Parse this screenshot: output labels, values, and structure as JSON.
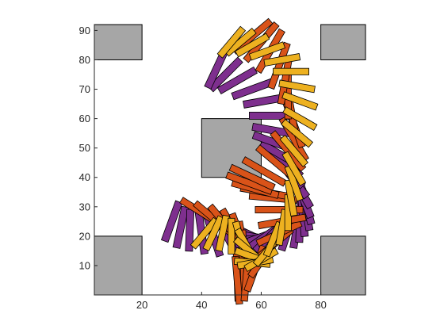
{
  "chart_data": {
    "type": "scatter",
    "title": "",
    "xlabel": "",
    "ylabel": "",
    "xlim": [
      4,
      95
    ],
    "ylim": [
      0,
      92
    ],
    "xticks": [
      20,
      40,
      60,
      80
    ],
    "yticks": [
      10,
      20,
      30,
      40,
      50,
      60,
      70,
      80,
      90
    ],
    "xtick_labels": [
      "20",
      "40",
      "60",
      "80"
    ],
    "ytick_labels": [
      "10",
      "20",
      "30",
      "40",
      "50",
      "60",
      "70",
      "80",
      "90"
    ],
    "grid": false,
    "legend": "none",
    "colors": {
      "purple": "#7e2f8e",
      "orange": "#d95319",
      "yellow": "#edb120",
      "obstacle": "#a6a6a6",
      "edge": "#000000"
    },
    "obstacles": [
      {
        "x": [
          4,
          20
        ],
        "y": [
          80,
          92
        ]
      },
      {
        "x": [
          80,
          95
        ],
        "y": [
          80,
          92
        ]
      },
      {
        "x": [
          40,
          60
        ],
        "y": [
          40,
          60
        ]
      },
      {
        "x": [
          4,
          20
        ],
        "y": [
          0,
          20
        ]
      },
      {
        "x": [
          80,
          95
        ],
        "y": [
          0,
          20
        ]
      }
    ],
    "series": [
      {
        "color": "purple",
        "length": 14,
        "width": 2.4,
        "poses": [
          [
            30,
            25,
            250
          ],
          [
            33,
            23,
            258
          ],
          [
            36,
            22,
            268
          ],
          [
            40,
            21,
            278
          ],
          [
            44,
            20,
            288
          ],
          [
            48,
            21,
            298
          ],
          [
            51,
            22,
            305
          ],
          [
            53,
            22,
            318
          ],
          [
            55,
            21,
            335
          ],
          [
            56,
            20,
            350
          ],
          [
            57,
            19,
            5
          ],
          [
            58,
            19,
            20
          ],
          [
            60,
            19,
            35
          ],
          [
            63,
            20,
            45
          ],
          [
            66,
            21,
            60
          ],
          [
            69,
            22,
            72
          ],
          [
            72,
            23,
            80
          ],
          [
            73,
            25,
            88
          ],
          [
            74,
            27,
            95
          ],
          [
            75,
            29,
            100
          ],
          [
            75,
            31,
            105
          ],
          [
            74,
            33,
            112
          ],
          [
            73,
            36,
            120
          ],
          [
            71,
            39,
            128
          ],
          [
            69,
            42,
            135
          ],
          [
            68,
            45,
            140
          ],
          [
            66,
            48,
            150
          ],
          [
            64,
            52,
            160
          ],
          [
            64,
            56,
            170
          ],
          [
            63,
            61,
            180
          ],
          [
            61,
            66,
            190
          ],
          [
            57,
            70,
            200
          ],
          [
            52,
            73,
            210
          ],
          [
            48,
            75,
            225
          ],
          [
            45,
            77,
            245
          ]
        ]
      },
      {
        "color": "orange",
        "length": 16,
        "width": 2.2,
        "poses": [
          [
            40,
            28,
            148
          ],
          [
            44,
            26,
            140
          ],
          [
            48,
            24,
            130
          ],
          [
            51,
            22,
            120
          ],
          [
            53,
            20,
            110
          ],
          [
            54,
            17,
            100
          ],
          [
            54,
            14,
            92
          ],
          [
            54,
            11,
            88
          ],
          [
            53,
            8,
            90
          ],
          [
            52,
            6,
            92
          ],
          [
            52,
            5,
            95
          ],
          [
            55,
            6,
            85
          ],
          [
            58,
            9,
            70
          ],
          [
            61,
            13,
            55
          ],
          [
            64,
            17,
            40
          ],
          [
            66,
            21,
            25
          ],
          [
            67,
            25,
            10
          ],
          [
            66,
            29,
            180
          ],
          [
            64,
            33,
            175
          ],
          [
            61,
            35,
            170
          ],
          [
            58,
            36,
            165
          ],
          [
            56,
            38,
            160
          ],
          [
            57,
            40,
            155
          ],
          [
            61,
            42,
            150
          ],
          [
            65,
            45,
            140
          ],
          [
            69,
            49,
            130
          ],
          [
            71,
            53,
            120
          ],
          [
            71,
            58,
            110
          ],
          [
            70,
            63,
            100
          ],
          [
            69,
            68,
            90
          ],
          [
            68,
            73,
            80
          ],
          [
            66,
            78,
            70
          ],
          [
            63,
            83,
            60
          ],
          [
            60,
            86,
            50
          ],
          [
            57,
            88,
            40
          ]
        ]
      },
      {
        "color": "yellow",
        "length": 12,
        "width": 2.2,
        "poses": [
          [
            41,
            21,
            230
          ],
          [
            44,
            21,
            245
          ],
          [
            47,
            21,
            258
          ],
          [
            50,
            20,
            270
          ],
          [
            53,
            19,
            285
          ],
          [
            55,
            17,
            300
          ],
          [
            56,
            15,
            320
          ],
          [
            57,
            13,
            340
          ],
          [
            57,
            11,
            355
          ],
          [
            58,
            11,
            10
          ],
          [
            60,
            12,
            30
          ],
          [
            62,
            15,
            50
          ],
          [
            64,
            19,
            68
          ],
          [
            67,
            23,
            80
          ],
          [
            69,
            28,
            90
          ],
          [
            70,
            33,
            100
          ],
          [
            71,
            38,
            110
          ],
          [
            71,
            43,
            120
          ],
          [
            71,
            49,
            130
          ],
          [
            72,
            55,
            140
          ],
          [
            73,
            60,
            150
          ],
          [
            73,
            66,
            160
          ],
          [
            72,
            71,
            170
          ],
          [
            70,
            76,
            180
          ],
          [
            67,
            80,
            190
          ],
          [
            62,
            83,
            200
          ],
          [
            57,
            85,
            210
          ],
          [
            53,
            86,
            220
          ],
          [
            50,
            86,
            230
          ]
        ]
      }
    ]
  }
}
